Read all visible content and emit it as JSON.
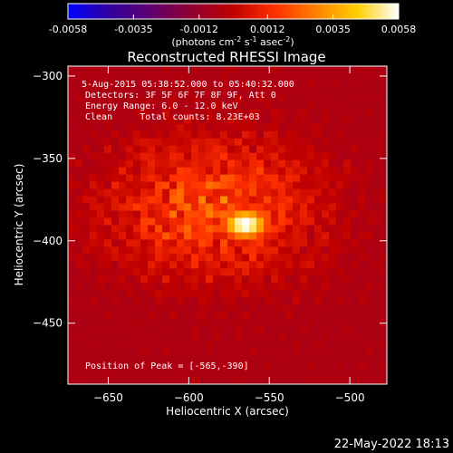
{
  "colorbar": {
    "ticks": [
      "-0.0058",
      "-0.0035",
      "-0.0012",
      "0.0012",
      "0.0035",
      "0.0058"
    ],
    "tick_values": [
      -0.0058,
      -0.0035,
      -0.0012,
      0.0012,
      0.0035,
      0.0058
    ],
    "range": [
      -0.0058,
      0.0058
    ],
    "units_text": "(photons cm",
    "units_sup1": "-2",
    "units_mid": " s",
    "units_sup2": "-1",
    "units_end": " asec",
    "units_sup3": "-2",
    "units_close": ")",
    "colors": [
      "#0000ff",
      "#3000a0",
      "#600070",
      "#900030",
      "#c00000",
      "#ff3000",
      "#ff8000",
      "#ffd000",
      "#ffffff"
    ]
  },
  "footer": {
    "timestamp": "22-May-2022 18:13"
  },
  "chart_data": {
    "type": "heatmap",
    "title": "Reconstructed RHESSI Image",
    "xlabel": "Heliocentric X (arcsec)",
    "ylabel": "Heliocentric Y (arcsec)",
    "xlim": [
      -675,
      -477
    ],
    "ylim": [
      -487,
      -294
    ],
    "x_ticks": [
      -650,
      -600,
      -550,
      -500
    ],
    "x_tick_labels": [
      "−650",
      "−600",
      "−550",
      "−500"
    ],
    "y_ticks": [
      -300,
      -350,
      -400,
      -450
    ],
    "y_tick_labels": [
      "−300",
      "−350",
      "−400",
      "−450"
    ],
    "annotations": [
      "5-Aug-2015 05:38:52.000 to 05:40:32.000",
      "Detectors: 3F 5F 6F 7F 8F 9F, Att 0",
      "Energy Range: 6.0 - 12.0 keV",
      "Clean     Total counts: 8.23E+03"
    ],
    "peak_label": "Position of Peak = [-565,-390]",
    "peak": {
      "x": -565,
      "y": -390
    },
    "colormap": [
      "#0000ff",
      "#3000a0",
      "#600070",
      "#900030",
      "#c00000",
      "#ff3000",
      "#ff8000",
      "#ffd000",
      "#ffffff"
    ],
    "vmin": -0.0058,
    "vmax": 0.0058
  }
}
